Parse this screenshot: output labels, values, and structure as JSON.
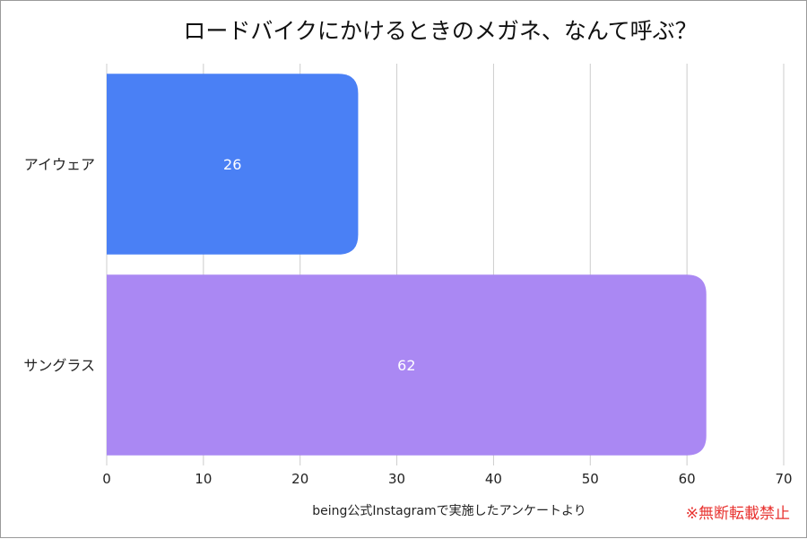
{
  "chart_data": {
    "type": "bar",
    "orientation": "horizontal",
    "title": "ロードバイクにかけるときのメガネ、なんて呼ぶ？",
    "categories": [
      "アイウェア",
      "サングラス"
    ],
    "values": [
      26,
      62
    ],
    "value_labels": [
      "26",
      "62"
    ],
    "colors": [
      "#4a80f5",
      "#aa88f3"
    ],
    "xlim": [
      0,
      70
    ],
    "x_ticks": [
      0,
      10,
      20,
      30,
      40,
      50,
      60,
      70
    ],
    "x_tick_labels": [
      "0",
      "10",
      "20",
      "30",
      "40",
      "50",
      "60",
      "70"
    ],
    "grid": true,
    "legend": "none"
  },
  "footer": {
    "source": "being公式Instagramで実施したアンケートより",
    "notice": "※無断転載禁止"
  }
}
